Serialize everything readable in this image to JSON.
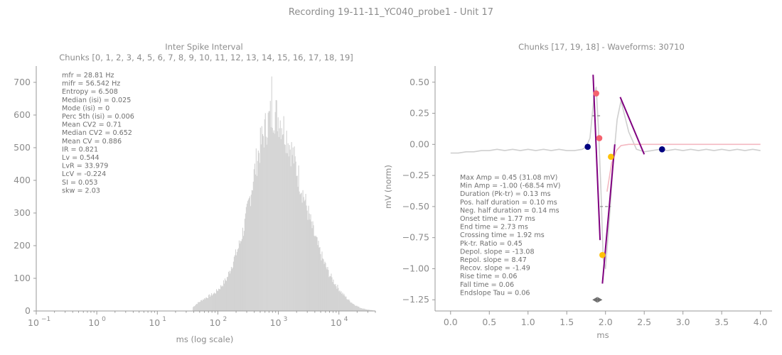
{
  "figure": {
    "suptitle": "Recording 19-11-11_YC040_probe1 - Unit 17"
  },
  "chart_data": [
    {
      "type": "bar",
      "name": "isi-histogram",
      "title": "Inter Spike Interval",
      "subtitle": "Chunks [0, 1, 2, 3, 4, 5, 6, 7, 8, 9, 10, 11, 12, 13, 14, 15, 16, 17, 18, 19]",
      "xlabel": "ms (log scale)",
      "ylabel": "",
      "xscale": "log",
      "xlim": [
        0.1,
        40000
      ],
      "ylim": [
        0,
        750
      ],
      "x_ticks": [
        0.1,
        1,
        10,
        100,
        1000,
        10000
      ],
      "x_tick_labels": [
        [
          "10",
          "−1"
        ],
        [
          "10",
          "0"
        ],
        [
          "10",
          "1"
        ],
        [
          "10",
          "2"
        ],
        [
          "10",
          "3"
        ],
        [
          "10",
          "4"
        ]
      ],
      "y_ticks": [
        0,
        100,
        200,
        300,
        400,
        500,
        600,
        700
      ],
      "bar_color": "#d3d3d3",
      "envelope_log10_ms": [
        1.58,
        1.65,
        1.75,
        1.85,
        1.95,
        2.05,
        2.15,
        2.25,
        2.35,
        2.45,
        2.55,
        2.65,
        2.75,
        2.85,
        2.92,
        2.97,
        3.05,
        3.15,
        3.25,
        3.35,
        3.45,
        3.55,
        3.65,
        3.75,
        3.85,
        3.95,
        4.05,
        4.15,
        4.25,
        4.35,
        4.45,
        4.55,
        4.62
      ],
      "envelope_counts": [
        10,
        22,
        35,
        45,
        55,
        75,
        100,
        150,
        200,
        270,
        370,
        470,
        540,
        590,
        610,
        600,
        580,
        530,
        470,
        400,
        330,
        260,
        200,
        150,
        110,
        80,
        55,
        35,
        20,
        10,
        5,
        2,
        0
      ],
      "peak_bin": {
        "log10_ms": 2.88,
        "count": 718
      },
      "stats": [
        "mfr = 28.81 Hz",
        "mifr = 56.542 Hz",
        "Entropy = 6.508",
        "Median (isi) = 0.025",
        "Mode (isi) = 0",
        "Perc 5th (isi) = 0.006",
        "Mean CV2 = 0.71",
        "Median CV2 = 0.652",
        "Mean CV = 0.886",
        "IR = 0.821",
        "Lv = 0.544",
        "LvR = 33.979",
        "LcV = -0.224",
        "SI = 0.053",
        "skw = 2.03"
      ]
    },
    {
      "type": "line",
      "name": "waveform",
      "title": "Chunks [17, 19, 18] - Waveforms: 30710",
      "xlabel": "ms",
      "ylabel": "mV (norm)",
      "xlim": [
        -0.2,
        4.15
      ],
      "ylim": [
        -1.34,
        0.63
      ],
      "x_ticks": [
        0.0,
        0.5,
        1.0,
        1.5,
        2.0,
        2.5,
        3.0,
        3.5,
        4.0
      ],
      "x_tick_labels": [
        "0.0",
        "0.5",
        "1.0",
        "1.5",
        "2.0",
        "2.5",
        "3.0",
        "3.5",
        "4.0"
      ],
      "y_ticks": [
        0.5,
        0.25,
        0.0,
        -0.25,
        -0.5,
        -0.75,
        -1.0,
        -1.25
      ],
      "y_tick_labels": [
        "0.50",
        "0.25",
        "0.00",
        "−0.25",
        "−0.50",
        "−0.75",
        "−1.00",
        "−1.25"
      ],
      "series": [
        {
          "color": "#cfcfcf",
          "x": [
            0.0,
            0.1,
            0.2,
            0.3,
            0.4,
            0.5,
            0.6,
            0.7,
            0.8,
            0.9,
            1.0,
            1.1,
            1.2,
            1.3,
            1.4,
            1.5,
            1.6,
            1.7,
            1.75,
            1.8,
            1.85,
            1.88,
            1.91,
            1.94,
            1.97,
            2.0,
            2.05,
            2.1,
            2.15,
            2.2,
            2.3,
            2.4,
            2.5,
            2.6,
            2.7,
            2.8,
            2.9,
            3.0,
            3.1,
            3.2,
            3.3,
            3.4,
            3.5,
            3.6,
            3.7,
            3.8,
            3.9,
            4.0
          ],
          "y": [
            -0.07,
            -0.07,
            -0.06,
            -0.06,
            -0.05,
            -0.05,
            -0.04,
            -0.05,
            -0.04,
            -0.05,
            -0.04,
            -0.05,
            -0.04,
            -0.05,
            -0.04,
            -0.05,
            -0.05,
            -0.04,
            -0.02,
            0.05,
            0.38,
            0.46,
            0.12,
            -0.35,
            -0.92,
            -1.0,
            -0.6,
            -0.15,
            0.2,
            0.35,
            0.1,
            -0.04,
            -0.06,
            -0.05,
            -0.04,
            -0.05,
            -0.04,
            -0.05,
            -0.04,
            -0.05,
            -0.04,
            -0.05,
            -0.04,
            -0.05,
            -0.04,
            -0.05,
            -0.04,
            -0.05
          ]
        },
        {
          "color": "#f4b8c1",
          "x": [
            2.02,
            2.08,
            2.14,
            2.2,
            2.3,
            2.45,
            2.6,
            2.75,
            3.0,
            3.5,
            4.0
          ],
          "y": [
            -0.38,
            -0.15,
            -0.05,
            -0.01,
            0.0,
            0.0,
            0.0,
            0.0,
            0.0,
            0.0,
            0.0
          ]
        }
      ],
      "slope_lines": [
        {
          "color": "#800080",
          "x": [
            1.84,
            1.93
          ],
          "y": [
            0.56,
            -0.77
          ]
        },
        {
          "color": "#800080",
          "x": [
            1.96,
            2.12
          ],
          "y": [
            -1.12,
            0.0
          ]
        },
        {
          "color": "#800080",
          "x": [
            2.19,
            2.5
          ],
          "y": [
            0.38,
            -0.08
          ]
        }
      ],
      "markers": [
        {
          "color": "#000080",
          "x": 1.77,
          "y": -0.02
        },
        {
          "color": "#f4626e",
          "x": 1.88,
          "y": 0.41
        },
        {
          "color": "#f4626e",
          "x": 1.92,
          "y": 0.05
        },
        {
          "color": "#ffc107",
          "x": 1.96,
          "y": -0.89
        },
        {
          "color": "#ffc107",
          "x": 2.07,
          "y": -0.1
        },
        {
          "color": "#000080",
          "x": 2.73,
          "y": -0.04
        }
      ],
      "half_width_marks": [
        {
          "color": "#8c8c8c",
          "x": [
            1.83,
            1.93
          ],
          "y": 0.23
        },
        {
          "color": "#8c8c8c",
          "x": [
            1.93,
            2.07
          ],
          "y": -0.5
        }
      ],
      "duration_arrow": {
        "color": "#6e6e6e",
        "x": [
          1.83,
          1.96
        ],
        "y": -1.25
      },
      "stats": [
        "Max Amp = 0.45 (31.08 mV)",
        "Min Amp = -1.00 (-68.54 mV)",
        "Duration (Pk-tr) = 0.13 ms",
        "Pos. half duration = 0.10 ms",
        "Neg. half duration = 0.14 ms",
        "Onset time = 1.77 ms",
        "End time = 2.73 ms",
        "Crossing time = 1.92 ms",
        "Pk-tr. Ratio = 0.45",
        "Depol. slope = -13.08",
        "Repol. slope = 8.47",
        "Recov. slope = -1.49",
        "Rise time = 0.06",
        "Fall time = 0.06",
        "Endslope Tau = 0.06"
      ]
    }
  ]
}
